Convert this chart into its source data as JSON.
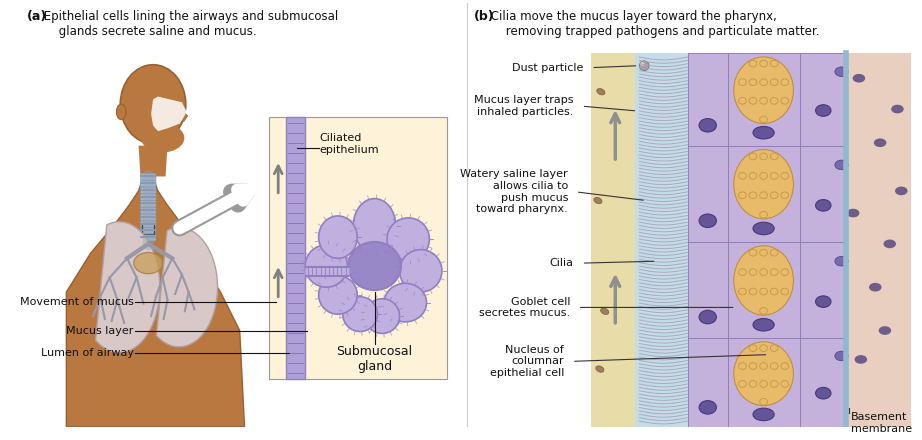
{
  "panel_a_title_bold": "(a)",
  "panel_a_title_rest": " Epithelial cells lining the airways and submucosal\n     glands secrete saline and mucus.",
  "panel_b_title_bold": "(b)",
  "panel_b_title_rest": " Cilia move the mucus layer toward the pharynx,\n     removing trapped pathogens and particulate matter.",
  "labels_a": {
    "ciliated_epithelium": "Ciliated\nepithelium",
    "movement_of_mucus": "Movement of mucus",
    "mucus_layer": "Mucus layer",
    "lumen_of_airway": "Lumen of airway",
    "submucosal_gland": "Submucosal\ngland"
  },
  "labels_b": {
    "dust_particle": "Dust particle",
    "mucus_layer_traps": "Mucus layer traps\ninhaled particles.",
    "watery_saline": "Watery saline layer\nallows cilia to\npush mucus\ntoward pharynx.",
    "cilia": "Cilia",
    "goblet_cell": "Goblet cell\nsecretes mucus.",
    "nucleus": "Nucleus of\ncolumnar\nepithelial cell",
    "basement": "Basement\nmembrane"
  },
  "bg_color": "#ffffff",
  "panel_a_bg": "#fef3d8",
  "saline_color": "#c8dde8",
  "mucus_color": "#e8ddb0",
  "cell_purple": "#c0afd8",
  "cell_purple_dark": "#a898c8",
  "goblet_orange": "#e8bb6a",
  "goblet_orange_dark": "#d4a050",
  "nucleus_dark": "#635598",
  "nucleus_border": "#4a3878",
  "tissue_pink": "#e8cfc0",
  "cilia_gray": "#9898a8",
  "gland_fill": "#9888c8",
  "gland_center": "#8070b8",
  "gland_border": "#8070b8",
  "epi_strip": "#b0a0d8",
  "arrow_gray": "#808080"
}
